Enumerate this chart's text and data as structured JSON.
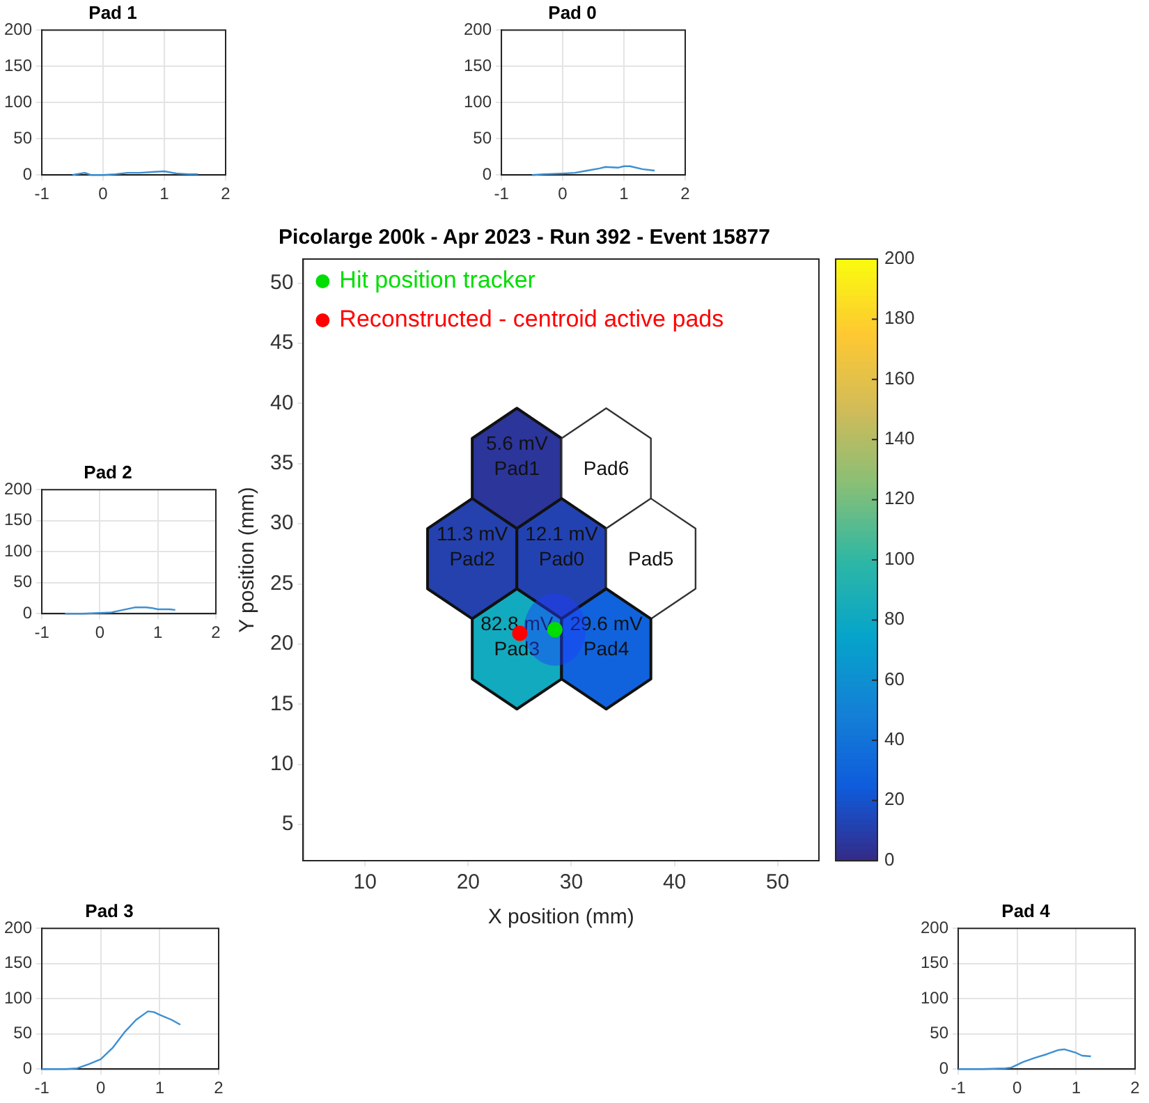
{
  "chart_data": [
    {
      "type": "line",
      "title": "Pad 1",
      "xlim": [
        -1,
        2
      ],
      "xticks": [
        -1,
        0,
        1,
        2
      ],
      "ylim": [
        0,
        200
      ],
      "yticks": [
        0,
        50,
        100,
        150,
        200
      ],
      "grid": true,
      "color": "#3d8fd1",
      "x": [
        -0.5,
        -0.3,
        -0.2,
        0,
        0.2,
        0.4,
        0.6,
        0.8,
        1.0,
        1.2,
        1.4,
        1.55
      ],
      "values": [
        0,
        3,
        0,
        0,
        1,
        3,
        3,
        4,
        5,
        2,
        1,
        1
      ]
    },
    {
      "type": "line",
      "title": "Pad 0",
      "xlim": [
        -1,
        2
      ],
      "xticks": [
        -1,
        0,
        1,
        2
      ],
      "ylim": [
        0,
        200
      ],
      "yticks": [
        0,
        50,
        100,
        150,
        200
      ],
      "grid": true,
      "color": "#3d8fd1",
      "x": [
        -0.5,
        -0.3,
        0,
        0.2,
        0.4,
        0.6,
        0.7,
        0.9,
        1.0,
        1.1,
        1.3,
        1.5
      ],
      "values": [
        0,
        1,
        2,
        3,
        6,
        9,
        11,
        10,
        12,
        12,
        8,
        6
      ]
    },
    {
      "type": "scatter",
      "title": "Picolarge 200k - Apr 2023 - Run 392 - Event 15877",
      "xlabel": "X position (mm)",
      "ylabel": "Y position (mm)",
      "xlim": [
        4,
        54
      ],
      "xticks": [
        10,
        20,
        30,
        40,
        50
      ],
      "ylim": [
        2,
        52
      ],
      "yticks": [
        5,
        10,
        15,
        20,
        25,
        30,
        35,
        40,
        45,
        50
      ],
      "legend": "top left",
      "clim": [
        0,
        200
      ],
      "cticks": [
        0,
        20,
        40,
        60,
        80,
        100,
        120,
        140,
        160,
        180,
        200
      ],
      "series": [
        {
          "name": "Hit position tracker",
          "color": "#00dd00",
          "marker": "circle",
          "x": [
            28.4
          ],
          "values": [
            21.2
          ]
        },
        {
          "name": "Reconstructed - centroid active pads",
          "color": "#ff0000",
          "marker": "circle",
          "x": [
            25.0
          ],
          "values": [
            20.9
          ]
        }
      ]
    },
    {
      "type": "other",
      "categories": [
        "Pad1",
        "Pad6",
        "Pad2",
        "Pad0",
        "Pad5",
        "Pad3",
        "Pad4"
      ],
      "values": [
        5.6,
        null,
        11.3,
        12.1,
        null,
        82.8,
        29.6
      ],
      "value_labels": [
        "5.6 mV",
        null,
        "11.3 mV",
        "12.1 mV",
        null,
        "82.8 mV",
        "29.6 mV"
      ]
    },
    {
      "type": "line",
      "title": "Pad 2",
      "xlim": [
        -1,
        2
      ],
      "xticks": [
        -1,
        0,
        1,
        2
      ],
      "ylim": [
        0,
        200
      ],
      "yticks": [
        0,
        50,
        100,
        150,
        200
      ],
      "grid": true,
      "color": "#3d8fd1",
      "x": [
        -0.6,
        -0.3,
        0,
        0.2,
        0.4,
        0.6,
        0.8,
        0.9,
        1.0,
        1.2,
        1.3
      ],
      "values": [
        0,
        0,
        1,
        2,
        6,
        10,
        10,
        9,
        7,
        7,
        6
      ]
    },
    {
      "type": "line",
      "title": "Pad 3",
      "xlim": [
        -1,
        2
      ],
      "xticks": [
        -1,
        0,
        1,
        2
      ],
      "ylim": [
        0,
        200
      ],
      "yticks": [
        0,
        50,
        100,
        150,
        200
      ],
      "grid": true,
      "color": "#3d8fd1",
      "x": [
        -1,
        -0.6,
        -0.4,
        -0.2,
        0,
        0.2,
        0.4,
        0.6,
        0.8,
        0.9,
        1.0,
        1.2,
        1.35
      ],
      "values": [
        0,
        0,
        1,
        7,
        14,
        30,
        52,
        70,
        82,
        81,
        77,
        70,
        63
      ]
    },
    {
      "type": "line",
      "title": "Pad 4",
      "xlim": [
        -1,
        2
      ],
      "xticks": [
        -1,
        0,
        1,
        2
      ],
      "ylim": [
        0,
        200
      ],
      "yticks": [
        0,
        50,
        100,
        150,
        200
      ],
      "grid": true,
      "color": "#3d8fd1",
      "x": [
        -1,
        -0.6,
        -0.2,
        -0.1,
        0.1,
        0.3,
        0.5,
        0.7,
        0.8,
        1.0,
        1.1,
        1.25
      ],
      "values": [
        0,
        0,
        1,
        2,
        10,
        16,
        21,
        27,
        28,
        23,
        19,
        18
      ]
    }
  ]
}
